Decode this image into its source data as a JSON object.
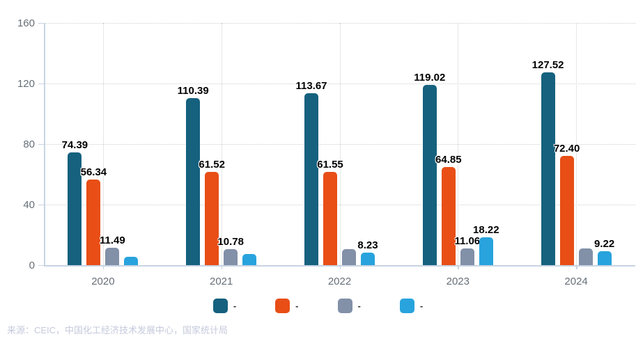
{
  "chart_data": {
    "type": "bar",
    "title": "",
    "xlabel": "",
    "ylabel": "",
    "categories": [
      "2020",
      "2021",
      "2022",
      "2023",
      "2024"
    ],
    "series": [
      {
        "name": "-",
        "color": "#15617e",
        "values": [
          74.39,
          110.39,
          113.67,
          119.02,
          127.52
        ],
        "labels": [
          "74.39",
          "110.39",
          "113.67",
          "119.02",
          "127.52"
        ]
      },
      {
        "name": "-",
        "color": "#e84e16",
        "values": [
          56.34,
          61.52,
          61.55,
          64.85,
          72.4
        ],
        "labels": [
          "56.34",
          "61.52",
          "61.55",
          "64.85",
          "72.40"
        ]
      },
      {
        "name": "-",
        "color": "#8290a8",
        "values": [
          11.49,
          10.78,
          10.6,
          11.06,
          11.0
        ],
        "labels": [
          "11.49",
          "10.78",
          "",
          "11.06",
          ""
        ]
      },
      {
        "name": "-",
        "color": "#28a3dd",
        "values": [
          5.5,
          7.4,
          8.23,
          18.22,
          9.22
        ],
        "labels": [
          "",
          "",
          "8.23",
          "18.22",
          "9.22"
        ]
      }
    ],
    "ylim": [
      0,
      160
    ],
    "yticks": [
      0,
      40,
      80,
      120,
      160
    ],
    "ytick_labels": [
      "0",
      "40",
      "80",
      "120",
      "160"
    ],
    "grid": "dotted horizontal and vertical at category centers",
    "legend_position": "bottom"
  },
  "legend": {
    "items": [
      {
        "label": "-",
        "color": "#15617e"
      },
      {
        "label": "-",
        "color": "#e84e16"
      },
      {
        "label": "-",
        "color": "#8290a8"
      },
      {
        "label": "-",
        "color": "#28a3dd"
      }
    ]
  },
  "source_text": "来源：CEIC，中国化工经济技术发展中心，国家统计局",
  "colors": {
    "axis_line": "#c8d4e3",
    "gridline": "#cfcfcf",
    "tick_text": "#666f77",
    "data_label": "#000000",
    "source_text": "#c5cadc",
    "background": "#ffffff"
  }
}
